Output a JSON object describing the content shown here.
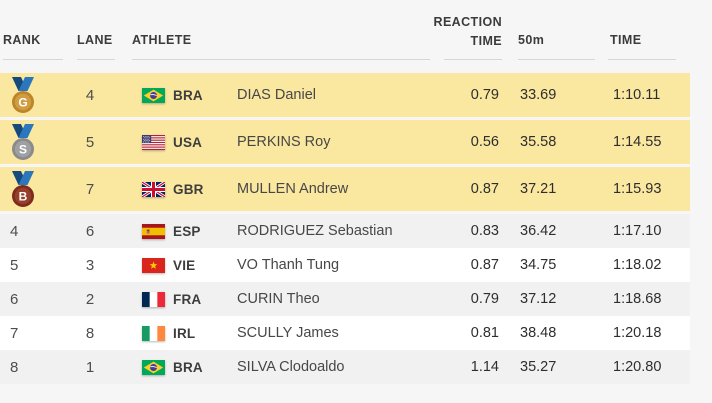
{
  "table": {
    "headers": {
      "rank": "RANK",
      "lane": "LANE",
      "athlete": "ATHLETE",
      "reaction_line1": "REACTION",
      "reaction_line2": "TIME",
      "split": "50m",
      "time": "TIME"
    },
    "rows": [
      {
        "rank": "1",
        "medal": {
          "letter": "G",
          "type": "gold"
        },
        "lane": "4",
        "noc": "BRA",
        "flag": "bra",
        "name": "DIAS Daniel",
        "reaction_time": "0.79",
        "split_50m": "33.69",
        "time": "1:10.11",
        "highlighted": true
      },
      {
        "rank": "2",
        "medal": {
          "letter": "S",
          "type": "silver"
        },
        "lane": "5",
        "noc": "USA",
        "flag": "usa",
        "name": "PERKINS Roy",
        "reaction_time": "0.56",
        "split_50m": "35.58",
        "time": "1:14.55",
        "highlighted": true
      },
      {
        "rank": "3",
        "medal": {
          "letter": "B",
          "type": "bronze"
        },
        "lane": "7",
        "noc": "GBR",
        "flag": "gbr",
        "name": "MULLEN Andrew",
        "reaction_time": "0.87",
        "split_50m": "37.21",
        "time": "1:15.93",
        "highlighted": true
      },
      {
        "rank": "4",
        "medal": null,
        "lane": "6",
        "noc": "ESP",
        "flag": "esp",
        "name": "RODRIGUEZ Sebastian",
        "reaction_time": "0.83",
        "split_50m": "36.42",
        "time": "1:17.10",
        "highlighted": false
      },
      {
        "rank": "5",
        "medal": null,
        "lane": "3",
        "noc": "VIE",
        "flag": "vie",
        "name": "VO Thanh Tung",
        "reaction_time": "0.87",
        "split_50m": "34.75",
        "time": "1:18.02",
        "highlighted": false
      },
      {
        "rank": "6",
        "medal": null,
        "lane": "2",
        "noc": "FRA",
        "flag": "fra",
        "name": "CURIN Theo",
        "reaction_time": "0.79",
        "split_50m": "37.12",
        "time": "1:18.68",
        "highlighted": false
      },
      {
        "rank": "7",
        "medal": null,
        "lane": "8",
        "noc": "IRL",
        "flag": "irl",
        "name": "SCULLY James",
        "reaction_time": "0.81",
        "split_50m": "38.48",
        "time": "1:20.18",
        "highlighted": false
      },
      {
        "rank": "8",
        "medal": null,
        "lane": "1",
        "noc": "BRA",
        "flag": "bra",
        "name": "SILVA Clodoaldo",
        "reaction_time": "1.14",
        "split_50m": "35.27",
        "time": "1:20.80",
        "highlighted": false
      }
    ]
  },
  "colors": {
    "page_background": "#F6F6F6",
    "highlight_row": "#FAE7A0",
    "striped_row": "#F1F1F1",
    "white_row": "#FFFFFF",
    "medal_gold_outer": "#BD8428",
    "medal_gold_inner": "#D09E41",
    "medal_silver_outer": "#8A8A8D",
    "medal_silver_inner": "#9FA0A2",
    "medal_bronze_outer": "#7E2B1E",
    "medal_bronze_inner": "#96402B",
    "ribbon_dark": "#16497C",
    "ribbon_light": "#2B77BE",
    "header_text": "#3B3B3B"
  }
}
